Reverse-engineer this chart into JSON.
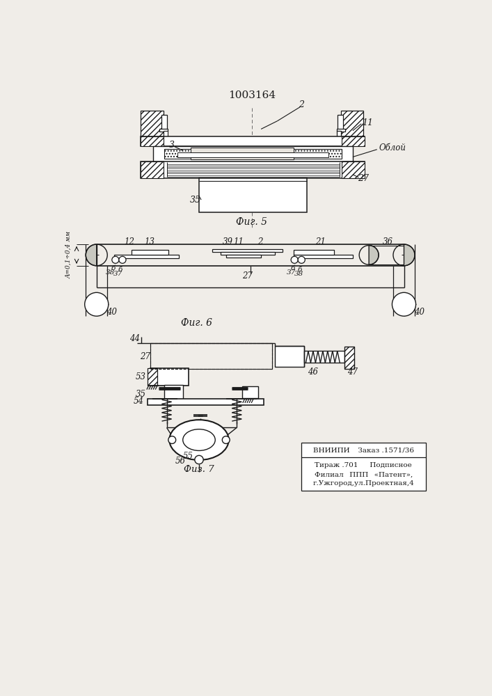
{
  "title": "1003164",
  "bg_color": "#f0ede8",
  "line_color": "#1a1a1a",
  "fig5_label": "Фиг. 5",
  "fig6_label": "Фиг. 6",
  "fig7_label": "Физ. 7",
  "stamp_line1": "ВНИИПИ   Заказ .1571/36",
  "stamp_line2": "Тираж .701   Подписное",
  "stamp_line3": "Филиал  ППП  «Патент»,",
  "stamp_line4": "г.Ужгород,ул.Проектная,4"
}
